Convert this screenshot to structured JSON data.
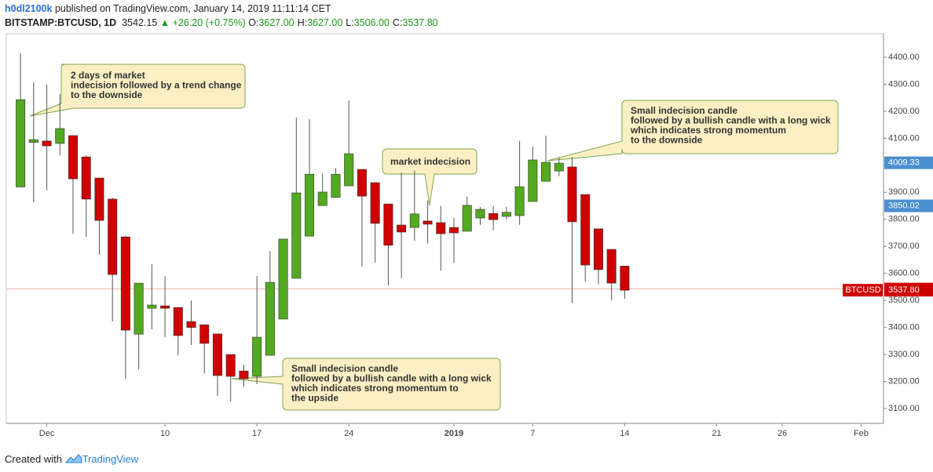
{
  "header": {
    "author": "h0dl2100k",
    "published": "published on TradingView.com, January 14, 2019 11:11:14 CET",
    "symbol": "BITSTAMP:BTCUSD, 1D",
    "price": "3542.15",
    "change": "▲ +26.20 (+0.75%)",
    "ohlc": [
      {
        "label": "O:",
        "value": "3627.00"
      },
      {
        "label": "H:",
        "value": "3627.00"
      },
      {
        "label": "L:",
        "value": "3506.00"
      },
      {
        "label": "C:",
        "value": "3537.80"
      }
    ]
  },
  "footer": {
    "text": "Created with",
    "brand": "TradingView"
  },
  "chart_data": {
    "type": "candlestick",
    "x": [
      "2018-11-29",
      "2018-11-30",
      "2018-12-01",
      "2018-12-02",
      "2018-12-03",
      "2018-12-04",
      "2018-12-05",
      "2018-12-06",
      "2018-12-07",
      "2018-12-08",
      "2018-12-09",
      "2018-12-10",
      "2018-12-11",
      "2018-12-12",
      "2018-12-13",
      "2018-12-14",
      "2018-12-15",
      "2018-12-16",
      "2018-12-17",
      "2018-12-18",
      "2018-12-19",
      "2018-12-20",
      "2018-12-21",
      "2018-12-22",
      "2018-12-23",
      "2018-12-24",
      "2018-12-25",
      "2018-12-26",
      "2018-12-27",
      "2018-12-28",
      "2018-12-29",
      "2018-12-30",
      "2018-12-31",
      "2019-01-01",
      "2019-01-02",
      "2019-01-03",
      "2019-01-04",
      "2019-01-05",
      "2019-01-06",
      "2019-01-07",
      "2019-01-08",
      "2019-01-09",
      "2019-01-10",
      "2019-01-11",
      "2019-01-12",
      "2019-01-13",
      "2019-01-14"
    ],
    "open": [
      3920,
      4085,
      4090,
      4081,
      4110,
      4031,
      3953,
      3875,
      3735,
      3375,
      3471,
      3480,
      3474,
      3422,
      3410,
      3376,
      3300,
      3239,
      3219,
      3297,
      3431,
      3582,
      3738,
      3851,
      3881,
      3924,
      3985,
      3936,
      3857,
      3779,
      3770,
      3794,
      3788,
      3770,
      3756,
      3805,
      3822,
      3811,
      3814,
      3866,
      3941,
      3979,
      3994,
      3892,
      3765,
      3689,
      3627
    ],
    "high": [
      4415,
      4307,
      4298,
      4264,
      4110,
      4037,
      3953,
      3880,
      3740,
      3564,
      3634,
      3590,
      3474,
      3500,
      3410,
      3376,
      3300,
      3262,
      3590,
      3683,
      3727,
      4177,
      4170,
      3970,
      3990,
      4240,
      3985,
      3936,
      3857,
      3973,
      3980,
      3870,
      3850,
      3806,
      3885,
      3846,
      3850,
      3846,
      4090,
      4070,
      4110,
      4030,
      4030,
      3892,
      3765,
      3689,
      3627
    ],
    "low": [
      3920,
      3863,
      3907,
      4037,
      3747,
      3735,
      3669,
      3422,
      3210,
      3245,
      3393,
      3364,
      3297,
      3335,
      3230,
      3146,
      3126,
      3181,
      3190,
      3297,
      3431,
      3582,
      3738,
      3851,
      3881,
      3924,
      3625,
      3640,
      3555,
      3582,
      3720,
      3710,
      3610,
      3640,
      3756,
      3780,
      3760,
      3800,
      3780,
      3866,
      3941,
      3960,
      3490,
      3570,
      3560,
      3500,
      3506
    ],
    "close": [
      4243,
      4095,
      4072,
      4136,
      3950,
      3875,
      3796,
      3596,
      3390,
      3564,
      3483,
      3471,
      3370,
      3400,
      3341,
      3222,
      3219,
      3210,
      3364,
      3567,
      3727,
      3898,
      3967,
      3901,
      3967,
      4043,
      3886,
      3785,
      3704,
      3753,
      3820,
      3782,
      3747,
      3750,
      3852,
      3837,
      3799,
      3826,
      3921,
      4020,
      4011,
      4008,
      3791,
      3631,
      3614,
      3564,
      3537.8
    ],
    "up_color": "#53a91f",
    "down_color": "#d00000",
    "xlim": [
      "2018-11-28T10:00Z",
      "2019-02-03T05:00Z"
    ],
    "xticks": [
      {
        "value": "2018-12-01",
        "label": "Dec"
      },
      {
        "value": "2018-12-10",
        "label": "10"
      },
      {
        "value": "2018-12-17",
        "label": "17"
      },
      {
        "value": "2018-12-24",
        "label": "24"
      },
      {
        "value": "2019-01-01",
        "label": "2019"
      },
      {
        "value": "2019-01-07",
        "label": "7"
      },
      {
        "value": "2019-01-14",
        "label": "14"
      },
      {
        "value": "2019-01-21",
        "label": "21"
      },
      {
        "value": "2019-01-26",
        "label": "26"
      },
      {
        "value": "2019-02-01",
        "label": "Feb"
      }
    ],
    "ylim": [
      3045,
      4487
    ],
    "yticks": [
      {
        "value": 3100,
        "label": "3100.00"
      },
      {
        "value": 3200,
        "label": "3200.00"
      },
      {
        "value": 3300,
        "label": "3300.00"
      },
      {
        "value": 3400,
        "label": "3400.00"
      },
      {
        "value": 3500,
        "label": "3500.00"
      },
      {
        "value": 3600,
        "label": "3600.00"
      },
      {
        "value": 3700,
        "label": "3700.00"
      },
      {
        "value": 3800,
        "label": "3800.00"
      },
      {
        "value": 3900,
        "label": "3900.00"
      },
      {
        "value": 4000,
        "label": "4000.00"
      },
      {
        "value": 4100,
        "label": "4100.00"
      },
      {
        "value": 4200,
        "label": "4200.00"
      },
      {
        "value": 4300,
        "label": "4300.00"
      },
      {
        "value": 4400,
        "label": "4400.00"
      }
    ],
    "grid": false,
    "price_line": 3542.15,
    "markers": [
      {
        "value": 4009.33,
        "color": "#4a8fd0"
      },
      {
        "value": 3850.02,
        "color": "#4a8fd0"
      },
      {
        "value": 3542.15,
        "color": "#d00000"
      },
      {
        "value": 3537.8,
        "label": "3537.80",
        "color": "#d00000",
        "name": "BTCUSD"
      }
    ],
    "annotations": [
      {
        "lines": [
          "2 days of market",
          "indecision followed by a trend change",
          "to the downside"
        ]
      },
      {
        "lines": [
          "market indecision"
        ]
      },
      {
        "lines": [
          "Small indecision candle",
          "followed by a bullish candle with a long wick",
          "which indicates strong momentum",
          "to the downside"
        ]
      },
      {
        "lines": [
          "Small indecision candle",
          "followed by a bullish candle with a long wick",
          "which indicates strong momentum to",
          "the upside"
        ]
      }
    ]
  }
}
